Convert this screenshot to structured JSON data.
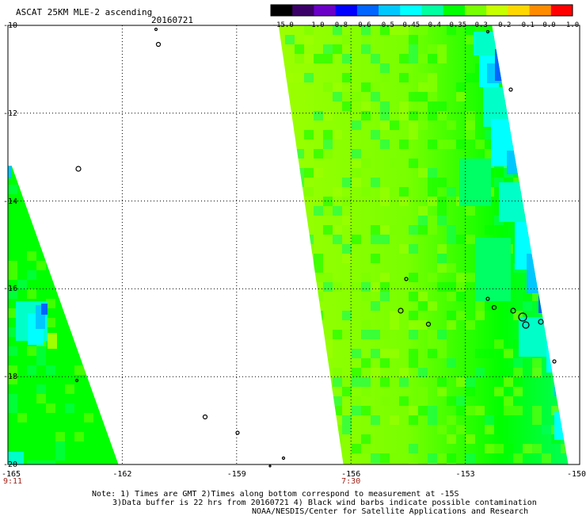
{
  "header": {
    "title": "ASCAT 25KM MLE-2 ascending",
    "date": "20160721"
  },
  "colorbar": {
    "labels": [
      "-15.0",
      "-1.0",
      "-0.8",
      "-0.6",
      "-0.5",
      "-0.45",
      "-0.4",
      "-0.35",
      "-0.3",
      "-0.2",
      "-0.1",
      "0.0",
      "1.0"
    ],
    "colors": [
      "#000000",
      "#3b0068",
      "#6a00c8",
      "#0000ff",
      "#0064ff",
      "#00c8ff",
      "#00ffff",
      "#00ffa0",
      "#00ff00",
      "#78ff00",
      "#c8ff00",
      "#ffd700",
      "#ff8c00",
      "#ff0000"
    ]
  },
  "axes": {
    "x_ticks": [
      "-165",
      "-162",
      "-159",
      "-156",
      "-153",
      "-150"
    ],
    "y_ticks": [
      "-10",
      "-12",
      "-14",
      "-16",
      "-18",
      "-20"
    ],
    "time_labels": [
      {
        "lon": -165,
        "text": "9:11"
      },
      {
        "lon": -156,
        "text": "7:30"
      }
    ]
  },
  "notes": {
    "line1": "Note: 1) Times are GMT 2)Times along bottom correspond to measurement at -15S",
    "line2": "3)Data buffer is 22 hrs from 20160721 4) Black wind barbs indicate possible contamination",
    "line3": "NOAA/NESDIS/Center for Satellite Applications and Research"
  },
  "map_data": {
    "lon_range": [
      -165,
      -150
    ],
    "lat_range": [
      -10,
      -20
    ],
    "colors": {
      "green": "#00ff00",
      "lime": "#78ff00",
      "yellowgreen": "#a0ff00",
      "springgreen": "#00ff64",
      "aqua": "#00ffc8",
      "cyan": "#00ffff",
      "skyblue": "#00c8ff",
      "blue": "#0064ff",
      "darkblue": "#0000ff",
      "yellow": "#ffff00"
    },
    "swaths": [
      {
        "name": "left-swath",
        "polygon": [
          [
            -165,
            -13.2
          ],
          [
            -164.9,
            -13.2
          ],
          [
            -162.1,
            -20
          ],
          [
            -165,
            -20
          ]
        ]
      },
      {
        "name": "right-swath",
        "polygon": [
          [
            -157.9,
            -10
          ],
          [
            -152.3,
            -10
          ],
          [
            -150.3,
            -20
          ],
          [
            -156.2,
            -20
          ]
        ]
      }
    ]
  }
}
